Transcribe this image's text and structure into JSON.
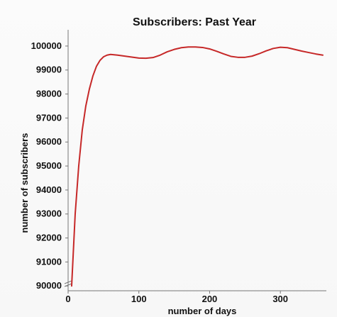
{
  "chart_data": {
    "type": "line",
    "title": "Subscribers: Past Year",
    "xlabel": "number of days",
    "ylabel": "number of subscribers",
    "xlim": [
      0,
      365
    ],
    "ylim": [
      89800,
      100500
    ],
    "xticks": [
      0,
      100,
      200,
      300
    ],
    "yticks": [
      90000,
      91000,
      92000,
      93000,
      94000,
      95000,
      96000,
      97000,
      98000,
      99000,
      100000
    ],
    "series": [
      {
        "color": "#c62828",
        "x": [
          5,
          10,
          15,
          20,
          25,
          30,
          35,
          40,
          45,
          50,
          55,
          60,
          70,
          80,
          90,
          100,
          110,
          120,
          130,
          140,
          150,
          160,
          170,
          180,
          190,
          200,
          210,
          220,
          230,
          240,
          250,
          260,
          270,
          280,
          290,
          300,
          310,
          320,
          330,
          340,
          350,
          360
        ],
        "y": [
          90000,
          93000,
          95000,
          96500,
          97500,
          98200,
          98750,
          99150,
          99400,
          99550,
          99620,
          99650,
          99620,
          99580,
          99540,
          99500,
          99490,
          99520,
          99620,
          99760,
          99860,
          99930,
          99960,
          99960,
          99940,
          99880,
          99780,
          99670,
          99570,
          99530,
          99530,
          99580,
          99680,
          99800,
          99900,
          99950,
          99930,
          99860,
          99790,
          99730,
          99670,
          99620
        ]
      }
    ]
  }
}
